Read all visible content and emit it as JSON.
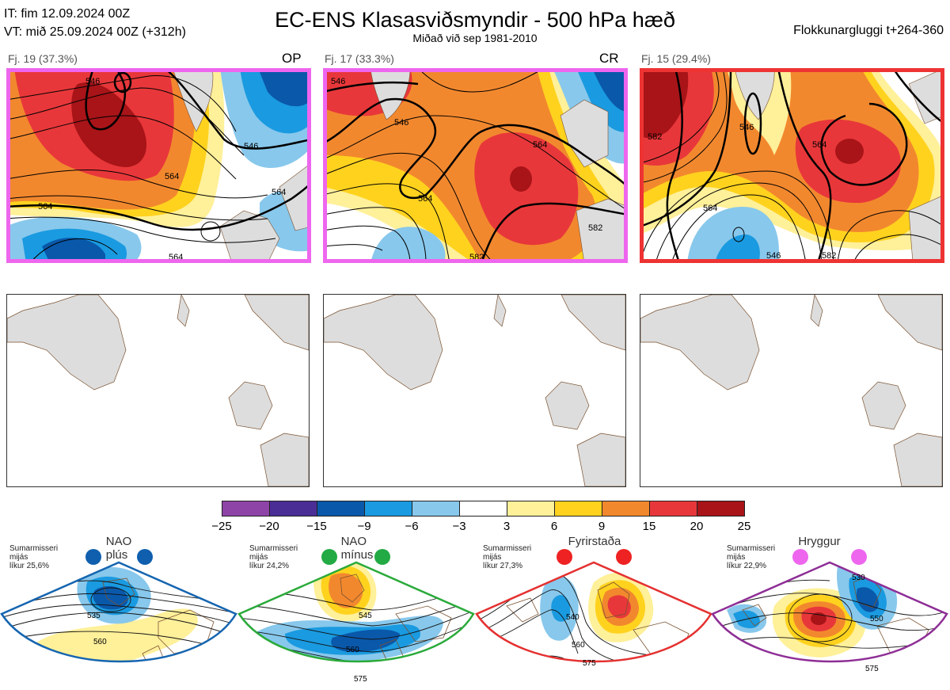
{
  "header": {
    "it_line": "IT: fim 12.09.2024 00Z",
    "vt_line": "VT: mið 25.09.2024 00Z  (+312h)",
    "title": "EC-ENS Klasasviðsmyndir - 500 hPa hæð",
    "subtitle": "Miðað við sep 1981-2010",
    "window": "Flokkunargluggi t+264-360"
  },
  "clusters": [
    {
      "label": "Fj. 19 (37.3%)",
      "code": "OP",
      "frame_color": "#ee66ee",
      "contour_labels": [
        "546",
        "564",
        "564",
        "564",
        "546",
        "564"
      ]
    },
    {
      "label": "Fj. 17 (33.3%)",
      "code": "CR",
      "frame_color": "#ee66ee",
      "contour_labels": [
        "546",
        "546",
        "564",
        "564",
        "582",
        "582"
      ]
    },
    {
      "label": "Fj. 15 (29.4%)",
      "code": "",
      "frame_color": "#ee3333",
      "contour_labels": [
        "582",
        "546",
        "564",
        "564",
        "582",
        "546"
      ]
    }
  ],
  "colorbar": {
    "ticks": [
      "−25",
      "−20",
      "−15",
      "−9",
      "−6",
      "−3",
      "3",
      "6",
      "9",
      "15",
      "20",
      "25"
    ],
    "colors": [
      "#8e44a6",
      "#4a2e96",
      "#0a58aa",
      "#1a9ae0",
      "#88c8ec",
      "#ffffff",
      "#fff09a",
      "#ffd21e",
      "#f2882e",
      "#e8373a",
      "#a81418"
    ]
  },
  "regimes": [
    {
      "name": "NAO plús",
      "note": [
        "Sumarmisseri",
        "mijás",
        "líkur 25,6%"
      ],
      "frame_color": "#1565b0",
      "dot_color": "#0f5fae",
      "contour_labels": [
        "535",
        "560"
      ]
    },
    {
      "name": "NAO mínus",
      "note": [
        "Sumarmisseri",
        "mijás",
        "líkur 24,2%"
      ],
      "frame_color": "#2aaa3a",
      "dot_color": "#22aa44",
      "contour_labels": [
        "545",
        "560",
        "575"
      ]
    },
    {
      "name": "Fyrirstaða",
      "note": [
        "Sumarmisseri",
        "mijás",
        "líkur 27,3%"
      ],
      "frame_color": "#e53030",
      "dot_color": "#ee2222",
      "contour_labels": [
        "540",
        "560",
        "575"
      ]
    },
    {
      "name": "Hryggur",
      "note": [
        "Sumarmisseri",
        "mijás",
        "líkur 22,9%"
      ],
      "frame_color": "#8e2e96",
      "dot_color": "#ee66ee",
      "contour_labels": [
        "530",
        "550",
        "575"
      ]
    }
  ]
}
